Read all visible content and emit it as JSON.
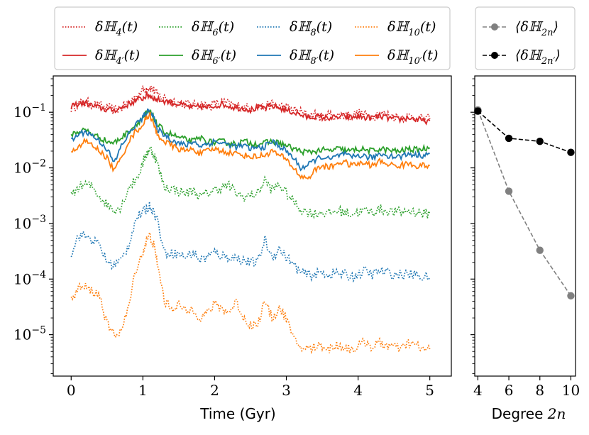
{
  "chart_data": [
    {
      "type": "line",
      "xlabel": "Time (Gyr)",
      "ylabel": "",
      "xlim": [
        -0.25,
        5.3
      ],
      "ylim": [
        1.8e-06,
        0.45
      ],
      "yscale": "log",
      "xticks": [
        {
          "value": 0,
          "label": "0"
        },
        {
          "value": 1,
          "label": "1"
        },
        {
          "value": 2,
          "label": "2"
        },
        {
          "value": 3,
          "label": "3"
        },
        {
          "value": 4,
          "label": "4"
        },
        {
          "value": 5,
          "label": "5"
        }
      ],
      "yticks": [
        {
          "value": 0.1,
          "mantissa": "10",
          "exponent": "−1"
        },
        {
          "value": 0.01,
          "mantissa": "10",
          "exponent": "−2"
        },
        {
          "value": 0.001,
          "mantissa": "10",
          "exponent": "−3"
        },
        {
          "value": 0.0001,
          "mantissa": "10",
          "exponent": "−4"
        },
        {
          "value": 1e-05,
          "mantissa": "10",
          "exponent": "−5"
        }
      ],
      "legend_position": "top",
      "x": [
        0.0,
        0.1,
        0.2,
        0.3,
        0.4,
        0.5,
        0.6,
        0.7,
        0.8,
        0.9,
        1.0,
        1.05,
        1.1,
        1.15,
        1.2,
        1.3,
        1.4,
        1.5,
        1.6,
        1.7,
        1.8,
        1.9,
        2.0,
        2.1,
        2.2,
        2.3,
        2.4,
        2.5,
        2.6,
        2.7,
        2.8,
        2.9,
        3.0,
        3.1,
        3.2,
        3.3,
        3.4,
        3.5,
        3.6,
        3.7,
        3.8,
        3.9,
        4.0,
        4.1,
        4.2,
        4.3,
        4.4,
        4.5,
        4.6,
        4.7,
        4.8,
        4.9,
        5.0
      ],
      "series": [
        {
          "name": "δH4(t)",
          "label_base": "δℍ",
          "label_sub": "4",
          "label_prime": "",
          "label_arg": "(t)",
          "color": "#d62728",
          "style": "dotted",
          "values": [
            0.12,
            0.14,
            0.15,
            0.14,
            0.13,
            0.12,
            0.11,
            0.12,
            0.15,
            0.19,
            0.25,
            0.27,
            0.28,
            0.25,
            0.21,
            0.18,
            0.16,
            0.15,
            0.14,
            0.13,
            0.14,
            0.13,
            0.14,
            0.15,
            0.14,
            0.13,
            0.12,
            0.12,
            0.13,
            0.12,
            0.14,
            0.13,
            0.12,
            0.11,
            0.1,
            0.09,
            0.09,
            0.08,
            0.09,
            0.085,
            0.09,
            0.085,
            0.095,
            0.09,
            0.085,
            0.095,
            0.09,
            0.085,
            0.08,
            0.085,
            0.08,
            0.075,
            0.075
          ]
        },
        {
          "name": "δH'4(t)",
          "label_base": "δℍ",
          "label_sub": "4",
          "label_prime": "′",
          "label_arg": "(t)",
          "color": "#d62728",
          "style": "solid",
          "values": [
            0.13,
            0.14,
            0.15,
            0.13,
            0.12,
            0.11,
            0.11,
            0.12,
            0.14,
            0.16,
            0.18,
            0.2,
            0.2,
            0.18,
            0.17,
            0.16,
            0.15,
            0.14,
            0.13,
            0.12,
            0.13,
            0.12,
            0.13,
            0.14,
            0.13,
            0.12,
            0.12,
            0.11,
            0.12,
            0.12,
            0.13,
            0.12,
            0.11,
            0.1,
            0.09,
            0.08,
            0.085,
            0.08,
            0.08,
            0.08,
            0.085,
            0.08,
            0.085,
            0.08,
            0.08,
            0.085,
            0.08,
            0.075,
            0.075,
            0.08,
            0.075,
            0.07,
            0.07
          ]
        },
        {
          "name": "δH6(t)",
          "label_base": "δℍ",
          "label_sub": "6",
          "label_prime": "",
          "label_arg": "(t)",
          "color": "#2ca02c",
          "style": "dotted",
          "values": [
            0.003,
            0.0045,
            0.005,
            0.0045,
            0.003,
            0.0022,
            0.0018,
            0.002,
            0.0045,
            0.006,
            0.012,
            0.018,
            0.022,
            0.018,
            0.012,
            0.0045,
            0.0042,
            0.0038,
            0.0035,
            0.004,
            0.003,
            0.0035,
            0.004,
            0.0045,
            0.0048,
            0.0035,
            0.003,
            0.0032,
            0.0035,
            0.006,
            0.004,
            0.005,
            0.0035,
            0.0025,
            0.0018,
            0.0016,
            0.0015,
            0.0016,
            0.0015,
            0.0017,
            0.0016,
            0.0015,
            0.0016,
            0.0017,
            0.0016,
            0.0018,
            0.0017,
            0.0016,
            0.0016,
            0.0017,
            0.0016,
            0.0015,
            0.0015
          ]
        },
        {
          "name": "δH'6(t)",
          "label_base": "δℍ",
          "label_sub": "6",
          "label_prime": "′",
          "label_arg": "(t)",
          "color": "#2ca02c",
          "style": "solid",
          "values": [
            0.04,
            0.045,
            0.048,
            0.04,
            0.035,
            0.03,
            0.028,
            0.035,
            0.045,
            0.06,
            0.08,
            0.095,
            0.1,
            0.08,
            0.06,
            0.045,
            0.04,
            0.035,
            0.032,
            0.03,
            0.035,
            0.03,
            0.028,
            0.03,
            0.028,
            0.027,
            0.03,
            0.028,
            0.027,
            0.028,
            0.03,
            0.028,
            0.025,
            0.022,
            0.02,
            0.019,
            0.02,
            0.021,
            0.02,
            0.022,
            0.021,
            0.02,
            0.022,
            0.021,
            0.02,
            0.022,
            0.021,
            0.02,
            0.02,
            0.022,
            0.021,
            0.022,
            0.023
          ]
        },
        {
          "name": "δH8(t)",
          "label_base": "δℍ",
          "label_sub": "8",
          "label_prime": "",
          "label_arg": "(t)",
          "color": "#1f77b4",
          "style": "dotted",
          "values": [
            0.0003,
            0.0006,
            0.0006,
            0.0005,
            0.0004,
            0.0002,
            0.00018,
            0.00022,
            0.0004,
            0.0012,
            0.0016,
            0.0018,
            0.0021,
            0.0016,
            0.0012,
            0.0003,
            0.0003,
            0.00028,
            0.00025,
            0.0003,
            0.00022,
            0.00025,
            0.0003,
            0.00026,
            0.00025,
            0.00024,
            0.00022,
            0.0002,
            0.0002,
            0.0005,
            0.00025,
            0.00035,
            0.00025,
            0.00018,
            0.00013,
            0.00012,
            0.00012,
            0.00013,
            0.00012,
            0.00013,
            0.00012,
            0.00011,
            0.00012,
            0.00014,
            0.00012,
            0.00014,
            0.00013,
            0.00012,
            0.00012,
            0.00012,
            0.00012,
            0.00011,
            0.00011
          ]
        },
        {
          "name": "δH'8(t)",
          "label_base": "δℍ",
          "label_sub": "8",
          "label_prime": "′",
          "label_arg": "(t)",
          "color": "#1f77b4",
          "style": "solid",
          "values": [
            0.03,
            0.04,
            0.045,
            0.038,
            0.03,
            0.022,
            0.012,
            0.025,
            0.04,
            0.06,
            0.08,
            0.1,
            0.11,
            0.08,
            0.05,
            0.04,
            0.032,
            0.028,
            0.025,
            0.03,
            0.025,
            0.027,
            0.03,
            0.028,
            0.026,
            0.024,
            0.025,
            0.022,
            0.023,
            0.024,
            0.03,
            0.025,
            0.02,
            0.015,
            0.01,
            0.011,
            0.014,
            0.016,
            0.014,
            0.016,
            0.018,
            0.015,
            0.017,
            0.016,
            0.015,
            0.018,
            0.017,
            0.016,
            0.016,
            0.018,
            0.017,
            0.017,
            0.018
          ]
        },
        {
          "name": "δH10(t)",
          "label_base": "δℍ",
          "label_sub": "10",
          "label_prime": "",
          "label_arg": "(t)",
          "color": "#ff7f0e",
          "style": "dotted",
          "values": [
            4e-05,
            7e-05,
            7e-05,
            6e-05,
            5e-05,
            1.5e-05,
            1e-05,
            1.2e-05,
            3e-05,
            0.00015,
            0.0003,
            0.0005,
            0.0006,
            0.0004,
            0.0002,
            4e-05,
            3e-05,
            3.5e-05,
            2.5e-05,
            3e-05,
            2e-05,
            2.5e-05,
            3.5e-05,
            3e-05,
            2.5e-05,
            4e-05,
            2e-05,
            1.5e-05,
            1.5e-05,
            4e-05,
            2e-05,
            3e-05,
            2e-05,
            8e-06,
            6e-06,
            5.5e-06,
            6e-06,
            6.5e-06,
            5.5e-06,
            6.5e-06,
            6e-06,
            5.5e-06,
            6e-06,
            7.5e-06,
            6e-06,
            7e-06,
            6.5e-06,
            6e-06,
            5.5e-06,
            7e-06,
            6.5e-06,
            5.5e-06,
            5.5e-06
          ]
        },
        {
          "name": "δH'10(t)",
          "label_base": "δℍ",
          "label_sub": "10",
          "label_prime": "′",
          "label_arg": "(t)",
          "color": "#ff7f0e",
          "style": "solid",
          "values": [
            0.018,
            0.025,
            0.03,
            0.025,
            0.02,
            0.015,
            0.009,
            0.015,
            0.03,
            0.045,
            0.06,
            0.08,
            0.09,
            0.06,
            0.04,
            0.03,
            0.025,
            0.022,
            0.02,
            0.022,
            0.018,
            0.02,
            0.022,
            0.02,
            0.019,
            0.018,
            0.017,
            0.016,
            0.016,
            0.017,
            0.02,
            0.017,
            0.014,
            0.01,
            0.007,
            0.0065,
            0.009,
            0.011,
            0.01,
            0.012,
            0.013,
            0.011,
            0.012,
            0.012,
            0.011,
            0.013,
            0.012,
            0.011,
            0.011,
            0.012,
            0.011,
            0.011,
            0.011
          ]
        }
      ]
    },
    {
      "type": "line",
      "xlabel": "Degree 2n",
      "xlabel_text": "Degree ",
      "xlabel_math": "2n",
      "ylabel": "",
      "xlim": [
        3.8,
        10.3
      ],
      "ylim": [
        1.8e-06,
        0.45
      ],
      "yscale": "log",
      "xticks": [
        {
          "value": 4,
          "label": "4"
        },
        {
          "value": 6,
          "label": "6"
        },
        {
          "value": 8,
          "label": "8"
        },
        {
          "value": 10,
          "label": "10"
        }
      ],
      "legend_position": "top",
      "categories": [
        4,
        6,
        8,
        10
      ],
      "series": [
        {
          "name": "⟨δH2n⟩",
          "label_base": "⟨δℍ",
          "label_sub": "2n",
          "label_prime": "",
          "label_close": "⟩",
          "color": "#808080",
          "style": "dashed",
          "marker": "circle",
          "values": [
            0.11,
            0.0038,
            0.00033,
            5e-05
          ]
        },
        {
          "name": "⟨δH'2n⟩",
          "label_base": "⟨δℍ",
          "label_sub": "2n",
          "label_prime": "′",
          "label_close": "⟩",
          "color": "#000000",
          "style": "dashed",
          "marker": "circle",
          "values": [
            0.105,
            0.034,
            0.03,
            0.019
          ]
        }
      ]
    }
  ]
}
